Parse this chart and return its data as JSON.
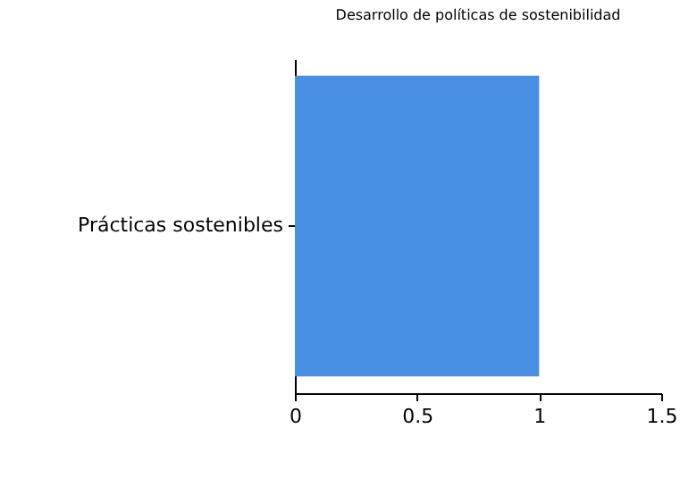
{
  "chart_data": {
    "type": "bar",
    "orientation": "horizontal",
    "title": "Desarrollo de políticas de sostenibilidad",
    "categories": [
      "Prácticas sostenibles"
    ],
    "values": [
      1
    ],
    "color": "#4a90e2",
    "xlim": [
      0,
      1.5
    ],
    "xticks": [
      0,
      0.5,
      1,
      1.5
    ],
    "grid": false
  }
}
